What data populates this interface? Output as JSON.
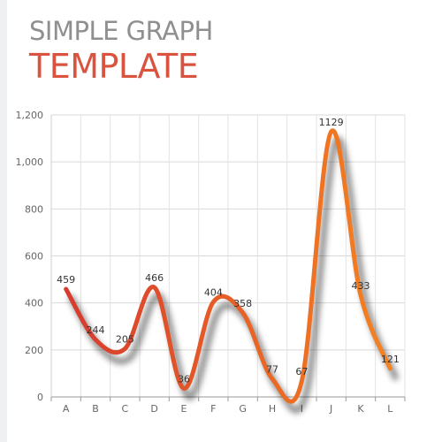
{
  "chart_data": {
    "type": "line",
    "title": "SIMPLE GRAPH",
    "subtitle": "TEMPLATE",
    "categories": [
      "A",
      "B",
      "C",
      "D",
      "E",
      "F",
      "G",
      "H",
      "I",
      "J",
      "K",
      "L"
    ],
    "series": [
      {
        "values": [
          459,
          244,
          205,
          466,
          36,
          404,
          358,
          77,
          67,
          1129,
          433,
          121
        ]
      }
    ],
    "ylim": [
      0,
      1200
    ],
    "yticks": [
      0,
      200,
      400,
      600,
      800,
      1000,
      1200
    ],
    "ytick_labels": [
      "0",
      "200",
      "400",
      "600",
      "800",
      "1,000",
      "1,200"
    ],
    "grid": true,
    "line_gradient": [
      "#d63b2f",
      "#f58220"
    ],
    "xlabel": "",
    "ylabel": ""
  }
}
